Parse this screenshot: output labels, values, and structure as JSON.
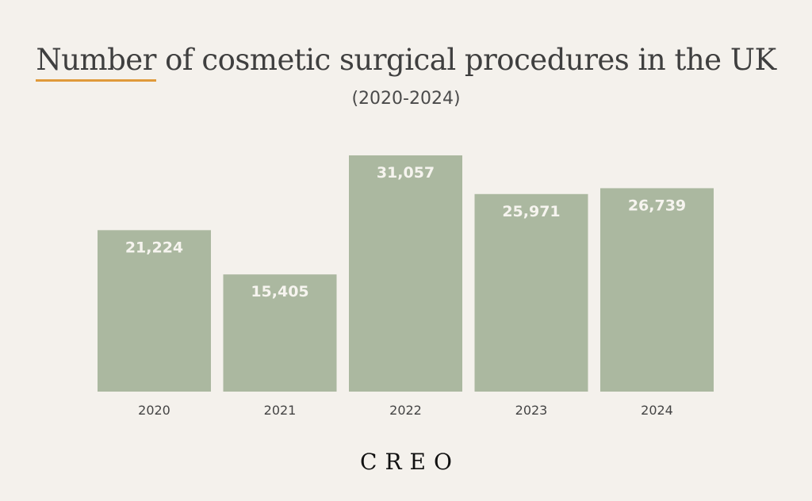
{
  "header": {
    "title_highlight": "Number",
    "title_rest": " of cosmetic surgical procedures in the UK",
    "subtitle": "(2020-2024)"
  },
  "colors": {
    "background": "#F4F1EC",
    "bar": "#ABB8A0",
    "bar_label": "#F6F4EF",
    "accent": "#E09A3A",
    "tick_label": "#444444"
  },
  "chart_data": {
    "type": "bar",
    "title": "Number of cosmetic surgical procedures in the UK",
    "subtitle": "(2020-2024)",
    "categories": [
      "2020",
      "2021",
      "2022",
      "2023",
      "2024"
    ],
    "values": [
      21224,
      15405,
      31057,
      25971,
      26739
    ],
    "value_labels": [
      "21,224",
      "15,405",
      "31,057",
      "25,971",
      "26,739"
    ],
    "xlabel": "",
    "ylabel": "",
    "ylim": [
      0,
      31057
    ],
    "grid": false,
    "legend": "none"
  },
  "logo": {
    "text": "CREO"
  }
}
